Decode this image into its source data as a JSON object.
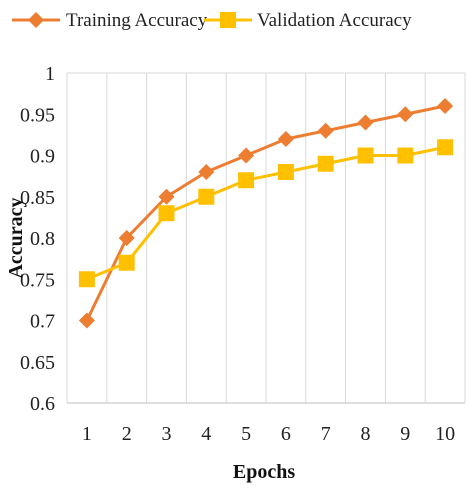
{
  "chart_data": {
    "type": "line",
    "title": "",
    "xlabel": "Epochs",
    "ylabel": "Accuracy",
    "categories": [
      "1",
      "2",
      "3",
      "4",
      "5",
      "6",
      "7",
      "8",
      "9",
      "10"
    ],
    "y_ticks": [
      "0.6",
      "0.65",
      "0.7",
      "0.75",
      "0.8",
      "0.85",
      "0.9",
      "0.95",
      "1"
    ],
    "ylim": [
      0.6,
      1.0
    ],
    "grid": "vertical",
    "legend_position": "top",
    "series": [
      {
        "name": "Training Accuracy",
        "values": [
          0.7,
          0.8,
          0.85,
          0.88,
          0.9,
          0.92,
          0.93,
          0.94,
          0.95,
          0.96
        ],
        "color": "#ED7D31",
        "marker": "diamond"
      },
      {
        "name": "Validation Accuracy",
        "values": [
          0.75,
          0.77,
          0.83,
          0.85,
          0.87,
          0.88,
          0.89,
          0.9,
          0.9,
          0.91
        ],
        "color": "#FFC000",
        "marker": "square"
      }
    ]
  }
}
